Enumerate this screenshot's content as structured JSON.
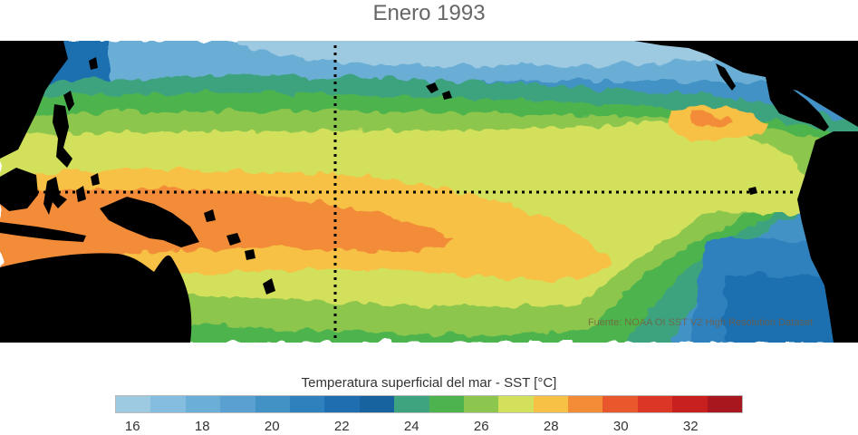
{
  "title": "Enero 1993",
  "legend": {
    "title": "Temperatura superficial del mar - SST  [°C]",
    "colors": [
      "#9ecae1",
      "#84bde0",
      "#6baed6",
      "#5aa1d1",
      "#4292c6",
      "#2f81bd",
      "#1f6fb0",
      "#17639f",
      "#3ea37f",
      "#4db34e",
      "#8cc64e",
      "#d3e05b",
      "#f7c145",
      "#f28c37",
      "#e8582c",
      "#dc3726",
      "#c8201f",
      "#a8171e"
    ],
    "ticks": [
      "16",
      "18",
      "20",
      "22",
      "24",
      "26",
      "28",
      "30",
      "32"
    ]
  },
  "source": "Fuente: NOAA OI SST V2 High Resolution Dataset",
  "colors": {
    "land": "#000000",
    "guide_lines": "#000000"
  }
}
